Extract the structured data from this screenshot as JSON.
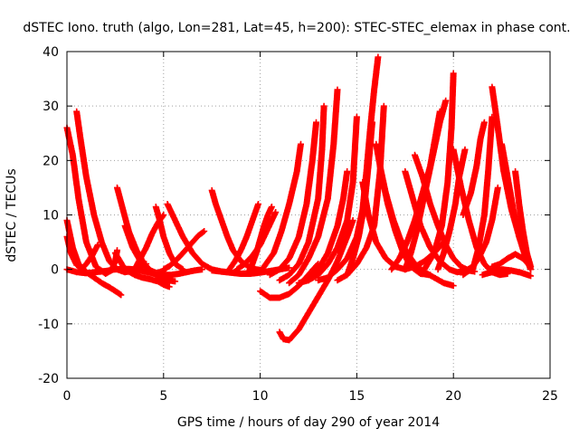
{
  "chart_data": {
    "type": "scatter",
    "title": "dSTEC Iono. truth (algo, Lon=281, Lat=45, h=200): STEC-STEC_elemax in phase cont.",
    "xlabel": "GPS time / hours of day 290 of year 2014",
    "ylabel": "dSTEC  / TECUs",
    "xlim": [
      0,
      25
    ],
    "ylim": [
      -20,
      40
    ],
    "xticks": [
      0,
      5,
      10,
      15,
      20,
      25
    ],
    "yticks": [
      -20,
      -10,
      0,
      10,
      20,
      30,
      40
    ],
    "grid": true,
    "marker": "+",
    "color": "#ff0000",
    "series": [
      {
        "x": [
          0.0,
          0.3,
          0.6,
          1.0,
          1.5,
          2.0,
          2.3,
          2.5,
          2.6
        ],
        "y": [
          26,
          21,
          13,
          5,
          0.5,
          -0.8,
          -0.2,
          1.5,
          3.5
        ]
      },
      {
        "x": [
          0.5,
          0.7,
          1.0,
          1.4,
          1.8,
          2.2,
          2.6,
          3.0,
          3.4,
          3.8,
          4.1
        ],
        "y": [
          29,
          24,
          17,
          10,
          5,
          1.5,
          0,
          -0.5,
          -0.3,
          0.4,
          1
        ]
      },
      {
        "x": [
          0.0,
          0.3,
          0.6,
          1.0,
          1.4,
          1.8,
          2.2,
          2.6,
          2.8
        ],
        "y": [
          9,
          4,
          1,
          -0.5,
          -1.5,
          -2.5,
          -3.3,
          -4.2,
          -4.7
        ]
      },
      {
        "x": [
          0.0,
          0.2,
          0.5,
          0.8,
          1.0,
          1.3,
          1.6
        ],
        "y": [
          6,
          3,
          0.8,
          0.2,
          1,
          2.5,
          4.5
        ]
      },
      {
        "x": [
          0.0,
          0.5,
          1.0,
          1.5,
          2.0,
          2.5,
          3.0,
          3.5,
          4.0,
          4.5,
          5.0
        ],
        "y": [
          0,
          -0.5,
          -0.7,
          -0.5,
          -0.3,
          0,
          0.1,
          0,
          -0.4,
          -0.8,
          -0.3
        ]
      },
      {
        "x": [
          2.6,
          2.9,
          3.2,
          3.6,
          4.0,
          4.4,
          4.8,
          5.2,
          5.6
        ],
        "y": [
          15,
          11,
          7,
          3.5,
          1,
          -0.5,
          -1.5,
          -2,
          -2.2
        ]
      },
      {
        "x": [
          2.5,
          3.0,
          3.5,
          3.9,
          4.3,
          4.7,
          5.0,
          5.3
        ],
        "y": [
          3,
          0,
          -1,
          -1.5,
          -1.8,
          -2.2,
          -2.8,
          -3.2
        ]
      },
      {
        "x": [
          3.0,
          3.4,
          3.8,
          4.2,
          4.6,
          5.0,
          5.4,
          5.8,
          6.2,
          6.6,
          7.0
        ],
        "y": [
          8,
          4,
          1.5,
          0,
          -0.6,
          -1,
          -1,
          -0.8,
          -0.5,
          -0.2,
          0
        ]
      },
      {
        "x": [
          3.5,
          3.8,
          4.1,
          4.4,
          4.7,
          5.0
        ],
        "y": [
          0,
          2,
          4,
          6.5,
          8.5,
          10
        ]
      },
      {
        "x": [
          4.6,
          4.8,
          5.0,
          5.3,
          5.6,
          6.0
        ],
        "y": [
          11.5,
          9,
          6,
          3,
          1,
          0
        ]
      },
      {
        "x": [
          5.2,
          5.6,
          6.0,
          6.5,
          7.0,
          7.5,
          8.0,
          8.5,
          9.0,
          9.5,
          10.0
        ],
        "y": [
          12,
          9,
          6,
          3,
          1,
          0,
          -0.4,
          -0.6,
          -0.8,
          -0.7,
          -0.5
        ]
      },
      {
        "x": [
          5.0,
          5.3,
          5.6,
          5.9,
          6.2,
          6.5,
          6.8,
          7.1
        ],
        "y": [
          0,
          0.6,
          1.5,
          2.6,
          3.8,
          5,
          6.2,
          7
        ]
      },
      {
        "x": [
          7.5,
          7.7,
          8.0,
          8.3,
          8.6,
          9.0,
          9.4,
          9.8,
          10.2
        ],
        "y": [
          14.5,
          12,
          9,
          6,
          3.5,
          1.5,
          0.5,
          0,
          -0.2
        ]
      },
      {
        "x": [
          7.5,
          8.0,
          8.5,
          9.0,
          9.5,
          10.0,
          10.5,
          11.0,
          11.5
        ],
        "y": [
          -0.2,
          -0.4,
          -0.6,
          -0.8,
          -0.8,
          -0.6,
          -0.3,
          0,
          0.3
        ]
      },
      {
        "x": [
          8.4,
          8.7,
          9.0,
          9.3,
          9.6,
          9.9
        ],
        "y": [
          0,
          1.5,
          3.5,
          6,
          9,
          12
        ]
      },
      {
        "x": [
          8.8,
          9.2,
          9.6,
          10.0,
          10.4,
          10.8
        ],
        "y": [
          0,
          1,
          2.5,
          4.5,
          7.5,
          10.5
        ]
      },
      {
        "x": [
          9.4,
          9.6,
          9.8,
          10.0,
          10.2,
          10.4,
          10.6
        ],
        "y": [
          -0.5,
          1,
          3,
          5.5,
          8,
          10,
          11.5
        ]
      },
      {
        "x": [
          10.0,
          10.5,
          11.0,
          11.5,
          12.0,
          12.5,
          13.0
        ],
        "y": [
          -4,
          -5.2,
          -5.2,
          -4.5,
          -3,
          -1,
          1
        ]
      },
      {
        "x": [
          11.0,
          11.2,
          11.5,
          12.0,
          12.5,
          13.0,
          13.5,
          14.0,
          14.5,
          14.8
        ],
        "y": [
          -11.5,
          -12.8,
          -13,
          -11,
          -8,
          -5,
          -2,
          1.5,
          6,
          9
        ]
      },
      {
        "x": [
          10.0,
          10.3,
          10.7,
          11.1,
          11.5,
          11.9,
          12.1
        ],
        "y": [
          -0.5,
          1,
          3,
          7,
          12,
          18,
          23
        ]
      },
      {
        "x": [
          10.5,
          11.0,
          11.5,
          12.0,
          12.4,
          12.7,
          12.9
        ],
        "y": [
          -1,
          0,
          2,
          6,
          12,
          20,
          27
        ]
      },
      {
        "x": [
          11.0,
          11.5,
          12.0,
          12.5,
          13.0,
          13.2,
          13.3
        ],
        "y": [
          -2,
          -1,
          1,
          5,
          13,
          22,
          30
        ]
      },
      {
        "x": [
          11.5,
          12.0,
          12.5,
          13.0,
          13.5,
          13.8,
          14.0
        ],
        "y": [
          -2.5,
          -1,
          2,
          6,
          13,
          23,
          33
        ]
      },
      {
        "x": [
          12.0,
          12.5,
          13.0,
          13.5,
          14.0,
          14.3,
          14.5
        ],
        "y": [
          -2.5,
          -2,
          0,
          3,
          8,
          13,
          18
        ]
      },
      {
        "x": [
          12.5,
          13.0,
          13.5,
          14.0,
          14.5,
          14.8,
          15.0
        ],
        "y": [
          -2,
          -1,
          1,
          4,
          9,
          16,
          28
        ]
      },
      {
        "x": [
          13.0,
          13.5,
          14.0,
          14.5,
          15.0,
          15.3,
          15.5,
          15.7,
          15.9,
          16.1
        ],
        "y": [
          -2,
          -1.5,
          0,
          2,
          6,
          11,
          18,
          26,
          33,
          39
        ]
      },
      {
        "x": [
          14.0,
          14.5,
          15.0,
          15.5,
          15.9,
          16.2,
          16.4
        ],
        "y": [
          -2,
          -1,
          1,
          4,
          8,
          18,
          30
        ]
      },
      {
        "x": [
          14.5,
          14.8,
          15.1,
          15.4,
          15.6,
          15.8
        ],
        "y": [
          -1,
          2,
          6,
          12,
          19,
          27
        ]
      },
      {
        "x": [
          15.3,
          15.6,
          16.0,
          16.5,
          17.0,
          17.5,
          18.0,
          18.5,
          19.0,
          19.5
        ],
        "y": [
          16,
          10,
          5,
          2,
          0.5,
          0,
          0.5,
          1.5,
          3,
          5
        ]
      },
      {
        "x": [
          16.0,
          16.3,
          16.6,
          17.0,
          17.4,
          17.8,
          18.3,
          18.8
        ],
        "y": [
          23,
          17,
          12,
          7,
          3,
          0.5,
          -0.8,
          -1
        ]
      },
      {
        "x": [
          16.2,
          16.5,
          16.9,
          17.3,
          17.7,
          18.2,
          18.7
        ],
        "y": [
          19,
          14,
          9,
          5,
          2,
          -0.5,
          -1
        ]
      },
      {
        "x": [
          16.5,
          16.8,
          17.2,
          17.6,
          18.0,
          18.5,
          19.0,
          19.5,
          20.0
        ],
        "y": [
          14,
          10,
          6,
          3,
          1,
          -0.5,
          -1.5,
          -2.5,
          -3
        ]
      },
      {
        "x": [
          16.8,
          17.2,
          17.6,
          18.0,
          18.4,
          18.8,
          19.1,
          19.3
        ],
        "y": [
          0,
          2,
          5,
          9,
          14,
          19,
          25,
          29
        ]
      },
      {
        "x": [
          17.5,
          17.8,
          18.1,
          18.4,
          18.7,
          19.0,
          19.3,
          19.6
        ],
        "y": [
          0,
          3,
          7,
          12,
          17,
          22,
          27,
          31
        ]
      },
      {
        "x": [
          17.5,
          17.9,
          18.3,
          18.8,
          19.3,
          19.8,
          20.2,
          20.6,
          21.0
        ],
        "y": [
          18,
          13,
          8,
          4,
          1.5,
          0,
          -0.5,
          -0.3,
          0.5
        ]
      },
      {
        "x": [
          18.0,
          18.4,
          18.8,
          19.2,
          19.6,
          20.0,
          20.4,
          20.8,
          21.1
        ],
        "y": [
          21,
          17,
          12,
          8,
          4.5,
          2,
          0.5,
          -0.2,
          -0.4
        ]
      },
      {
        "x": [
          18.5,
          19.0,
          19.4,
          19.7,
          19.9,
          20.0
        ],
        "y": [
          0,
          3,
          8,
          16,
          26,
          36
        ]
      },
      {
        "x": [
          19.2,
          19.5,
          19.8,
          20.1,
          20.3,
          20.6
        ],
        "y": [
          0,
          3,
          7,
          12,
          17,
          22
        ]
      },
      {
        "x": [
          20.0,
          20.4,
          20.8,
          21.2,
          21.6,
          22.0,
          22.4,
          22.8
        ],
        "y": [
          22,
          15,
          9,
          4,
          1,
          -0.5,
          -1,
          -0.8
        ]
      },
      {
        "x": [
          20.5,
          20.9,
          21.3,
          21.7,
          22.0,
          22.3
        ],
        "y": [
          -1,
          0,
          2,
          5,
          9,
          15
        ]
      },
      {
        "x": [
          21.0,
          21.3,
          21.6,
          21.8,
          22.0
        ],
        "y": [
          0,
          4,
          10,
          18,
          28
        ]
      },
      {
        "x": [
          20.5,
          20.9,
          21.2,
          21.4,
          21.6
        ],
        "y": [
          10,
          14,
          19,
          24,
          27
        ]
      },
      {
        "x": [
          22.0,
          22.3,
          22.6,
          23.0,
          23.4,
          23.8,
          24.0
        ],
        "y": [
          33.5,
          26,
          18,
          11,
          6,
          2,
          0
        ]
      },
      {
        "x": [
          22.5,
          22.8,
          23.1,
          23.4,
          23.7,
          24.0
        ],
        "y": [
          23,
          17,
          11,
          6,
          2.5,
          0
        ]
      },
      {
        "x": [
          23.2,
          23.4,
          23.6,
          23.8,
          24.0
        ],
        "y": [
          18,
          12,
          7,
          3,
          0.5
        ]
      },
      {
        "x": [
          22.0,
          22.4,
          22.8,
          23.2,
          23.6,
          24.0
        ],
        "y": [
          0.5,
          1,
          2,
          2.8,
          2,
          0.5
        ]
      },
      {
        "x": [
          21.5,
          22.0,
          22.5,
          23.0,
          23.5,
          24.0
        ],
        "y": [
          -1,
          -0.5,
          0,
          -0.2,
          -0.6,
          -1.2
        ]
      }
    ]
  }
}
